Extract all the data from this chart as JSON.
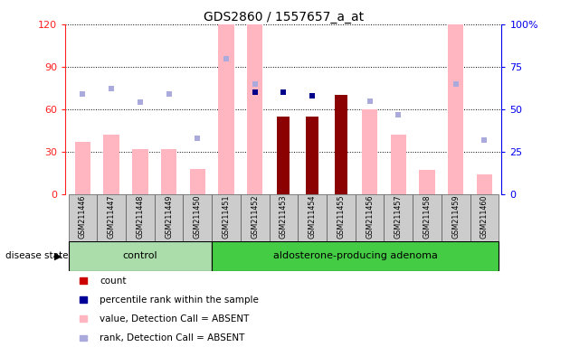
{
  "title": "GDS2860 / 1557657_a_at",
  "samples": [
    "GSM211446",
    "GSM211447",
    "GSM211448",
    "GSM211449",
    "GSM211450",
    "GSM211451",
    "GSM211452",
    "GSM211453",
    "GSM211454",
    "GSM211455",
    "GSM211456",
    "GSM211457",
    "GSM211458",
    "GSM211459",
    "GSM211460"
  ],
  "n_control": 5,
  "n_adenoma": 10,
  "absent_value": [
    37,
    42,
    32,
    32,
    18,
    120,
    120,
    null,
    null,
    null,
    60,
    42,
    17,
    120,
    14
  ],
  "absent_rank": [
    59,
    62,
    54,
    59,
    33,
    80,
    65,
    null,
    null,
    null,
    55,
    47,
    null,
    65,
    32
  ],
  "present_value": [
    null,
    null,
    null,
    null,
    null,
    null,
    null,
    55,
    55,
    70,
    null,
    null,
    null,
    null,
    null
  ],
  "present_rank": [
    null,
    null,
    null,
    null,
    null,
    null,
    60,
    60,
    58,
    null,
    null,
    null,
    null,
    null,
    null
  ],
  "ylim_left": [
    0,
    120
  ],
  "ylim_right": [
    0,
    100
  ],
  "yticks_left": [
    0,
    30,
    60,
    90,
    120
  ],
  "yticks_right": [
    0,
    25,
    50,
    75,
    100
  ],
  "absent_bar_color": "#FFB6C1",
  "absent_rank_color": "#AAAADD",
  "present_bar_color": "#8B0000",
  "present_rank_color": "#00008B",
  "group_control_color": "#AADDAA",
  "group_adenoma_color": "#44CC44",
  "group_box_color": "#CCCCCC",
  "bg_color": "#FFFFFF",
  "left_axis_color": "#FF2020",
  "right_axis_color": "#0000EE",
  "legend_items": [
    "count",
    "percentile rank within the sample",
    "value, Detection Call = ABSENT",
    "rank, Detection Call = ABSENT"
  ],
  "legend_colors": [
    "#CC0000",
    "#000099",
    "#FFB6C1",
    "#AAAADD"
  ]
}
